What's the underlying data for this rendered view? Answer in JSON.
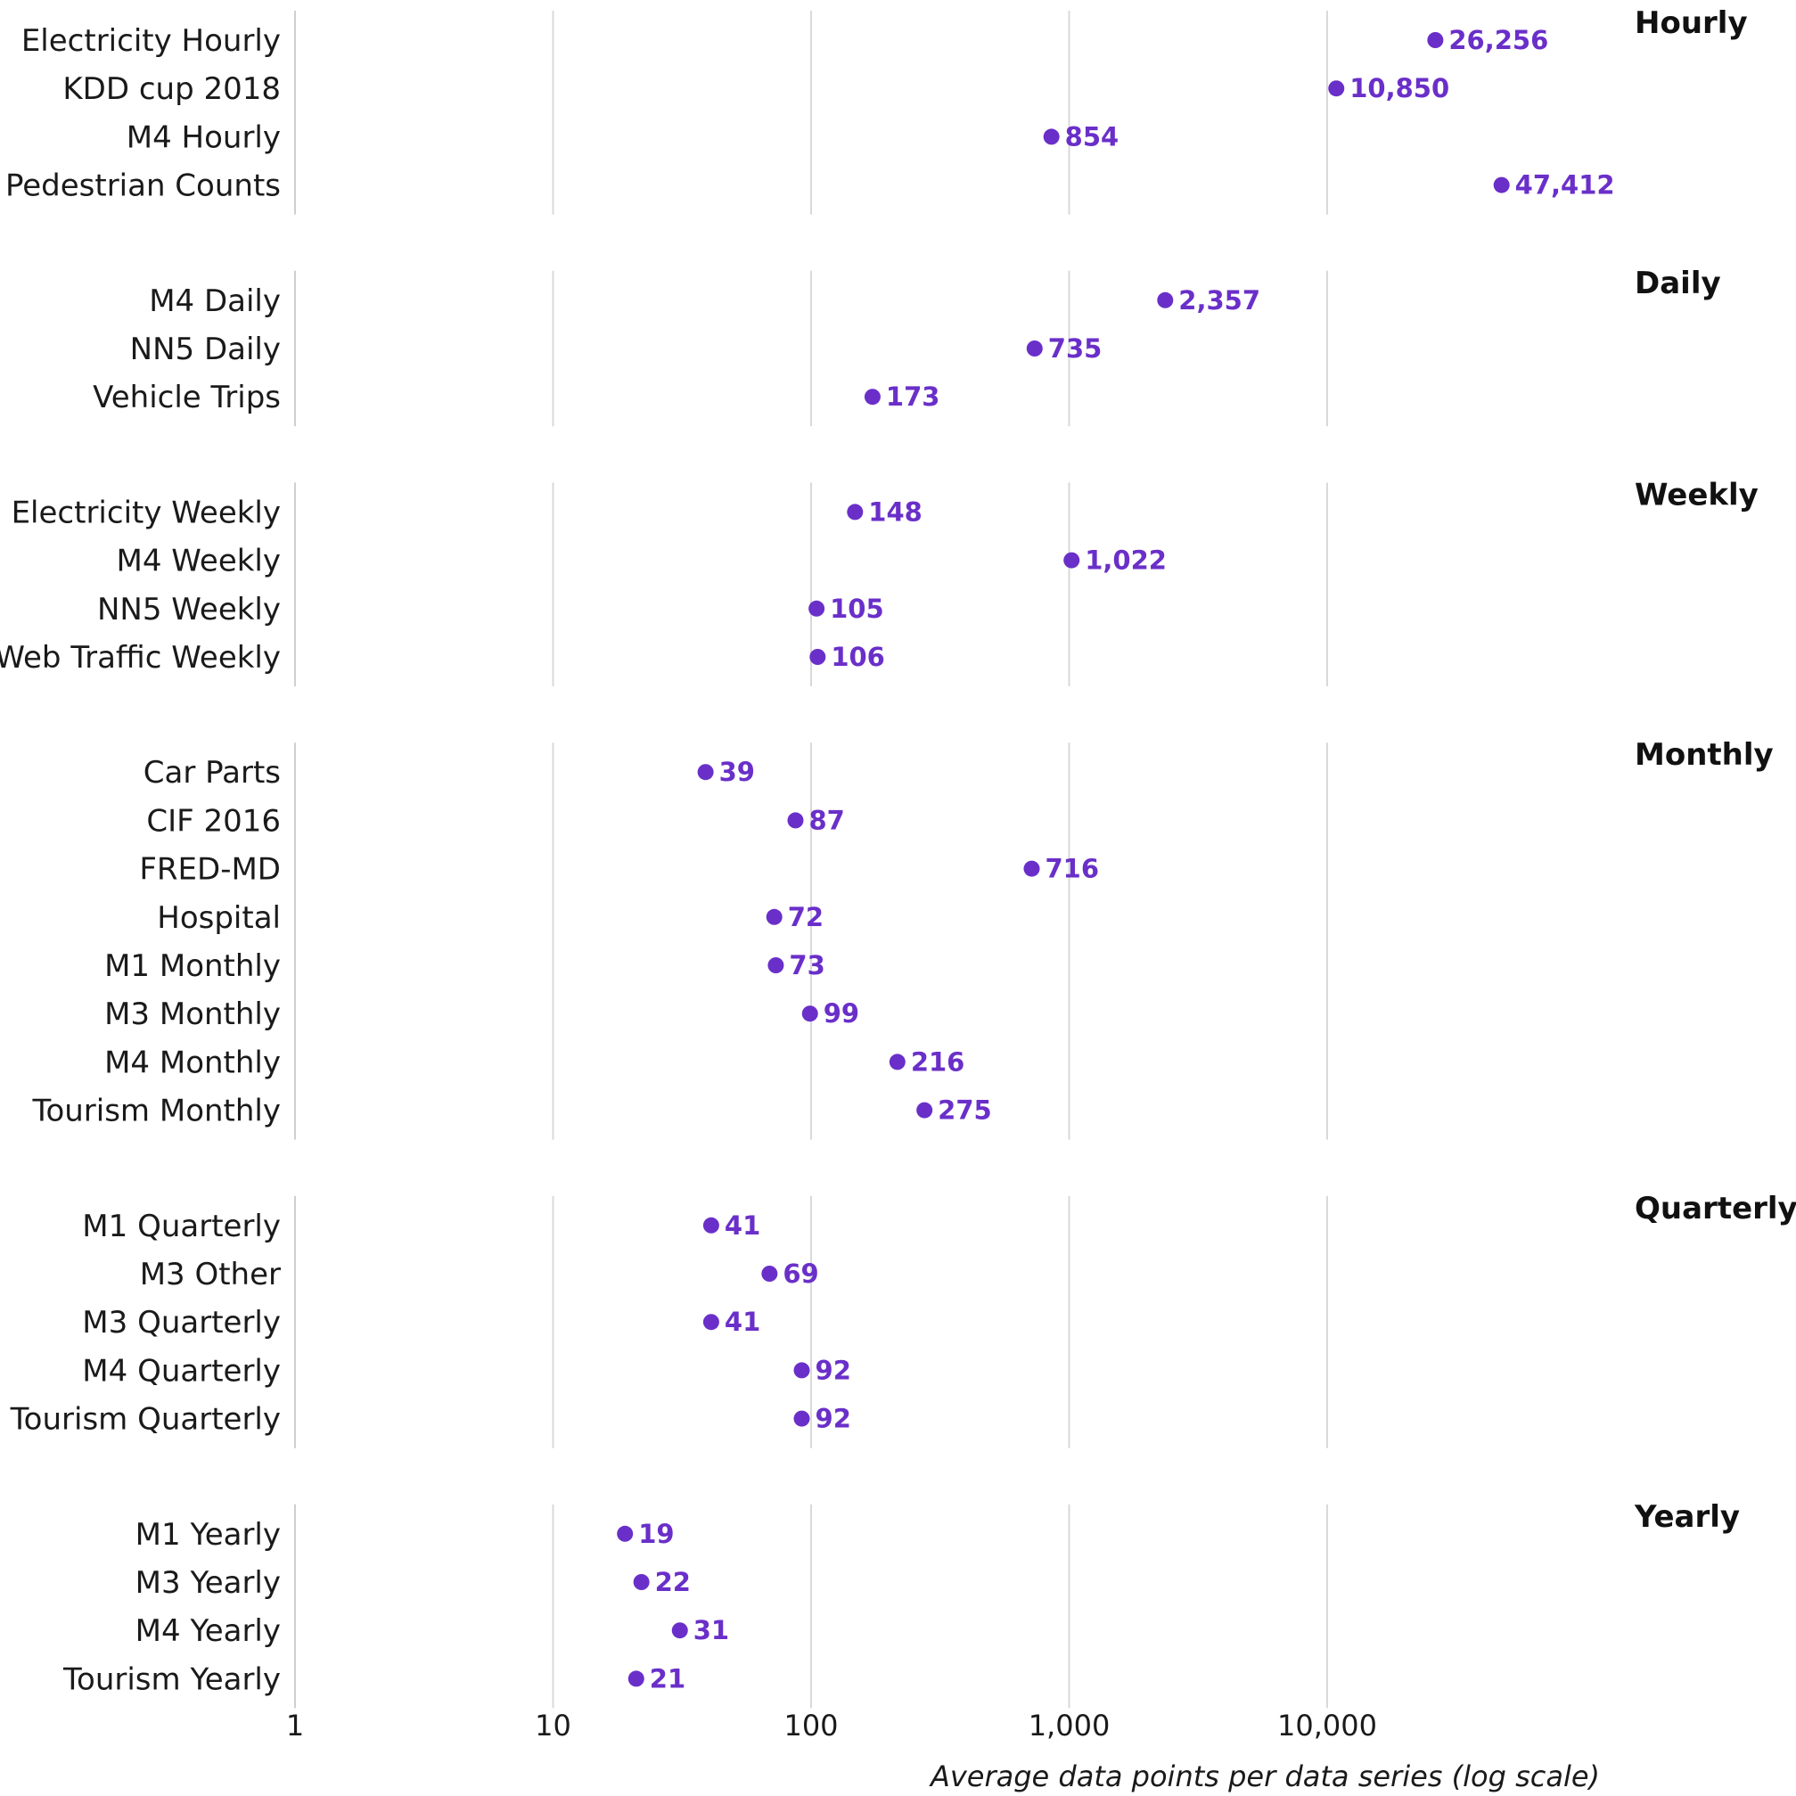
{
  "chart_data": {
    "type": "scatter",
    "xscale": "log",
    "xlim": [
      1,
      100000
    ],
    "xticks": [
      1,
      10,
      100,
      1000,
      10000
    ],
    "xtick_labels": [
      "1",
      "10",
      "100",
      "1,000",
      "10,000"
    ],
    "xlabel": "Average data points per data series (log scale)",
    "legend": "none",
    "colors": {
      "point": "#6a2fc9",
      "value_label": "#6a2fc9",
      "grid": "#d9d9d9"
    },
    "groups": [
      {
        "name": "Hourly",
        "items": [
          {
            "label": "Electricity Hourly",
            "value": 26256,
            "value_label": "26,256"
          },
          {
            "label": "KDD cup 2018",
            "value": 10850,
            "value_label": "10,850"
          },
          {
            "label": "M4 Hourly",
            "value": 854,
            "value_label": "854"
          },
          {
            "label": "Pedestrian Counts",
            "value": 47412,
            "value_label": "47,412"
          }
        ]
      },
      {
        "name": "Daily",
        "items": [
          {
            "label": "M4 Daily",
            "value": 2357,
            "value_label": "2,357"
          },
          {
            "label": "NN5 Daily",
            "value": 735,
            "value_label": "735"
          },
          {
            "label": "Vehicle Trips",
            "value": 173,
            "value_label": "173"
          }
        ]
      },
      {
        "name": "Weekly",
        "items": [
          {
            "label": "Electricity Weekly",
            "value": 148,
            "value_label": "148"
          },
          {
            "label": "M4 Weekly",
            "value": 1022,
            "value_label": "1,022"
          },
          {
            "label": "NN5 Weekly",
            "value": 105,
            "value_label": "105"
          },
          {
            "label": "Web Traffic Weekly",
            "value": 106,
            "value_label": "106"
          }
        ]
      },
      {
        "name": "Monthly",
        "items": [
          {
            "label": "Car Parts",
            "value": 39,
            "value_label": "39"
          },
          {
            "label": "CIF 2016",
            "value": 87,
            "value_label": "87"
          },
          {
            "label": "FRED-MD",
            "value": 716,
            "value_label": "716"
          },
          {
            "label": "Hospital",
            "value": 72,
            "value_label": "72"
          },
          {
            "label": "M1 Monthly",
            "value": 73,
            "value_label": "73"
          },
          {
            "label": "M3 Monthly",
            "value": 99,
            "value_label": "99"
          },
          {
            "label": "M4 Monthly",
            "value": 216,
            "value_label": "216"
          },
          {
            "label": "Tourism Monthly",
            "value": 275,
            "value_label": "275"
          }
        ]
      },
      {
        "name": "Quarterly",
        "items": [
          {
            "label": "M1 Quarterly",
            "value": 41,
            "value_label": "41"
          },
          {
            "label": "M3 Other",
            "value": 69,
            "value_label": "69"
          },
          {
            "label": "M3 Quarterly",
            "value": 41,
            "value_label": "41"
          },
          {
            "label": "M4 Quarterly",
            "value": 92,
            "value_label": "92"
          },
          {
            "label": "Tourism Quarterly",
            "value": 92,
            "value_label": "92"
          }
        ]
      },
      {
        "name": "Yearly",
        "items": [
          {
            "label": "M1 Yearly",
            "value": 19,
            "value_label": "19"
          },
          {
            "label": "M3 Yearly",
            "value": 22,
            "value_label": "22"
          },
          {
            "label": "M4 Yearly",
            "value": 31,
            "value_label": "31"
          },
          {
            "label": "Tourism Yearly",
            "value": 21,
            "value_label": "21"
          }
        ]
      }
    ]
  }
}
